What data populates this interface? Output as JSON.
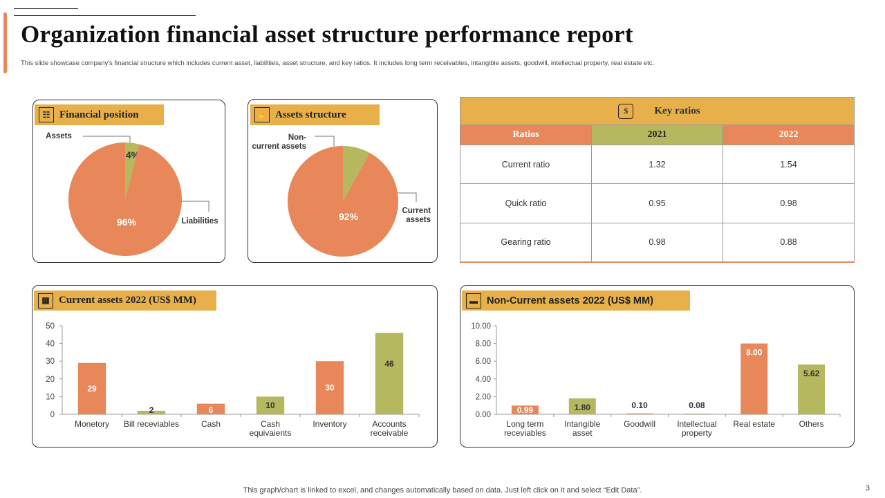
{
  "title": "Organization financial asset structure performance report",
  "subtitle": "This slide showcase company's financial structure which includes current asset, liabilities, asset structure, and key ratios. It includes long term receivables, intangible assets, goodwill, intellectual property, real estate etc.",
  "footer": "This graph/chart is linked to excel,  and changes automatically based on data. Just left click on it and select “Edit Data”.",
  "page_number": "3",
  "colors": {
    "orange": "#E8875A",
    "green": "#B5B85E",
    "gold": "#E8B04B"
  },
  "key_ratios": {
    "title": "Key ratios",
    "icon": "money-bag-icon",
    "headers": [
      "Ratios",
      "2021",
      "2022"
    ],
    "rows": [
      [
        "Current  ratio",
        "1.32",
        "1.54"
      ],
      [
        "Quick ratio",
        "0.95",
        "0.98"
      ],
      [
        "Gearing ratio",
        "0.98",
        "0.88"
      ]
    ]
  },
  "chart_data": [
    {
      "type": "pie",
      "title": "Financial position",
      "icon": "people-chart-icon",
      "slices": [
        {
          "label": "Assets",
          "value": 4,
          "data_label": "4%",
          "color": "#B5B85E"
        },
        {
          "label": "Liabilities",
          "value": 96,
          "data_label": "96%",
          "color": "#E8875A"
        }
      ]
    },
    {
      "type": "pie",
      "title": "Assets structure",
      "icon": "hand-coin-icon",
      "slices": [
        {
          "label": "Non-\ncurrent assets",
          "value": 8,
          "data_label": "8%",
          "color": "#B5B85E"
        },
        {
          "label": "Current\nassets",
          "value": 92,
          "data_label": "92%",
          "color": "#E8875A"
        }
      ]
    },
    {
      "type": "bar",
      "title": "Current  assets 2022 (US$ MM)",
      "icon": "chart-board-icon",
      "categories": [
        "Monetory",
        "Bill receviables",
        "Cash",
        "Cash\nequivaients",
        "Inventory",
        "Accounts\nreceivable"
      ],
      "values": [
        29,
        2,
        6,
        10,
        30,
        46
      ],
      "data_labels": [
        "29",
        "2",
        "6",
        "10",
        "30",
        "46"
      ],
      "colors": [
        "#E8875A",
        "#B5B85E",
        "#E8875A",
        "#B5B85E",
        "#E8875A",
        "#B5B85E"
      ],
      "ylim": [
        0,
        50
      ],
      "yticks": [
        "0",
        "10",
        "20",
        "30",
        "40",
        "50"
      ],
      "grid": false
    },
    {
      "type": "bar",
      "title": "Non-Current assets 2022 (US$ MM)",
      "icon": "cash-icon",
      "categories": [
        "Long term\nreceviables",
        "Intangible\nasset",
        "Goodwill",
        "Intellectual\nproperty",
        "Real estate",
        "Others"
      ],
      "values": [
        0.99,
        1.8,
        0.1,
        0.08,
        8.0,
        5.62
      ],
      "data_labels": [
        "0.99",
        "1.80",
        "0.10",
        "0.08",
        "8.00",
        "5.62"
      ],
      "colors": [
        "#E8875A",
        "#B5B85E",
        "#E8875A",
        "#B5B85E",
        "#E8875A",
        "#B5B85E"
      ],
      "ylim": [
        0,
        10
      ],
      "yticks": [
        "0.00",
        "2.00",
        "4.00",
        "6.00",
        "8.00",
        "10.00"
      ],
      "grid": false
    }
  ]
}
